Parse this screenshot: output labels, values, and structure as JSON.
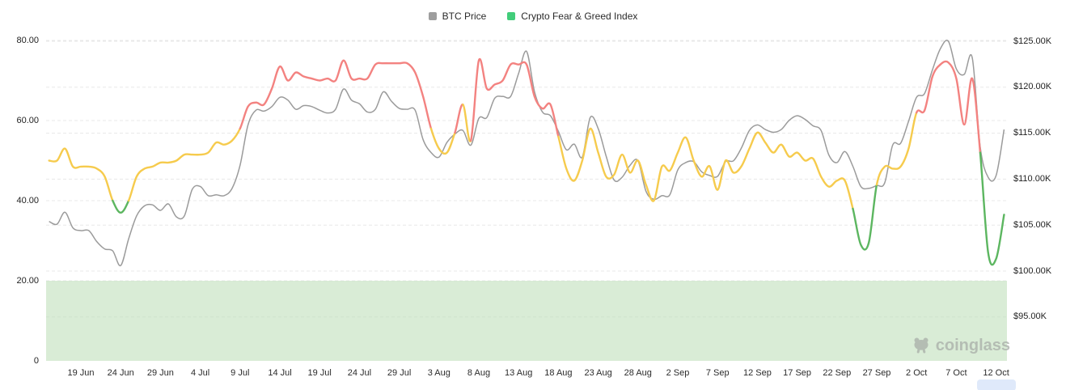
{
  "watermark": {
    "text": "coinglass"
  },
  "legend": [
    {
      "label": "BTC Price"
    },
    {
      "label": "Crypto Fear & Greed Index"
    }
  ],
  "chart_data": {
    "type": "line",
    "x_axis": {
      "tick_labels": [
        "19 Jun",
        "24 Jun",
        "29 Jun",
        "4 Jul",
        "9 Jul",
        "14 Jul",
        "19 Jul",
        "24 Jul",
        "29 Jul",
        "3 Aug",
        "8 Aug",
        "13 Aug",
        "18 Aug",
        "23 Aug",
        "28 Aug",
        "2 Sep",
        "7 Sep",
        "12 Sep",
        "17 Sep",
        "22 Sep",
        "27 Sep",
        "2 Oct",
        "7 Oct",
        "12 Oct"
      ],
      "interval": "daily",
      "series_start_label": "15 Jun",
      "series_end_label": "13 Oct",
      "highlighted_tick": "12 Oct"
    },
    "y_axis_left": {
      "name": "Crypto Fear & Greed Index",
      "tick_labels": [
        "80.00",
        "60.00",
        "40.00",
        "20.00",
        "0"
      ],
      "tick_values": [
        80,
        60,
        40,
        20,
        0
      ],
      "range": [
        0,
        80
      ]
    },
    "y_axis_right": {
      "name": "BTC Price",
      "tick_labels": [
        "$125.00K",
        "$120.00K",
        "$115.00K",
        "$110.00K",
        "$105.00K",
        "$100.00K",
        "$95.00K"
      ],
      "tick_values": [
        125,
        120,
        115,
        110,
        105,
        100,
        95
      ],
      "unit": "$K"
    },
    "fear_band": {
      "from": 0,
      "to": 20
    },
    "series": {
      "fear_greed": {
        "name": "Crypto Fear & Greed Index",
        "thresholds": {
          "fear_below": 40,
          "greed_from": 60
        },
        "values": [
          50,
          50,
          53,
          48.5,
          48.5,
          48.5,
          48,
          46,
          40,
          37,
          40,
          46,
          48,
          48.5,
          49.5,
          49.5,
          50,
          51.5,
          51.5,
          51.5,
          52,
          54.5,
          54,
          55,
          58,
          63.5,
          64.5,
          64,
          68,
          73.5,
          70,
          72,
          71,
          70.5,
          70,
          70.5,
          70,
          75,
          70.5,
          70.5,
          70.5,
          74,
          74.3,
          74.3,
          74.3,
          74.3,
          72,
          66,
          58,
          53,
          52,
          57,
          64,
          55,
          75,
          68,
          69,
          70,
          74,
          74,
          74,
          66,
          63,
          64,
          56,
          48,
          45,
          50,
          58,
          52,
          46,
          46.5,
          51.5,
          47,
          50,
          44,
          40,
          48.5,
          47.5,
          52,
          55.8,
          50,
          46,
          48.6,
          42.7,
          50,
          47,
          48.6,
          53,
          57,
          54.5,
          52,
          54,
          51,
          52,
          50,
          50.5,
          46,
          43.5,
          45,
          45,
          38,
          29,
          29.5,
          44,
          48.5,
          48,
          48.5,
          53,
          62,
          62.5,
          71,
          74,
          74.5,
          70.5,
          59,
          70.5,
          52,
          27,
          25.5,
          36.5
        ]
      },
      "btc_price": {
        "name": "BTC Price",
        "unit": "$K",
        "values": [
          105.4,
          105.1,
          106.4,
          104.7,
          104.4,
          104.4,
          103.2,
          102.4,
          102.2,
          100.6,
          103.5,
          106.0,
          107.1,
          107.2,
          106.6,
          107.3,
          105.9,
          106.0,
          108.9,
          109.2,
          108.2,
          108.3,
          108.2,
          109.0,
          111.5,
          115.9,
          117.5,
          117.4,
          117.9,
          118.9,
          118.6,
          117.6,
          118.0,
          117.9,
          117.5,
          117.2,
          117.6,
          119.8,
          118.6,
          118.2,
          117.3,
          117.6,
          119.5,
          118.5,
          117.7,
          117.6,
          117.5,
          114.3,
          112.9,
          112.4,
          114.0,
          114.9,
          115.3,
          113.7,
          116.6,
          116.7,
          118.8,
          119.0,
          119.0,
          121.5,
          123.9,
          119.5,
          117.3,
          116.9,
          115.2,
          113.2,
          113.8,
          112.4,
          116.7,
          115.5,
          112.5,
          109.9,
          110.2,
          111.5,
          112.0,
          108.7,
          107.8,
          108.2,
          108.3,
          111.0,
          111.8,
          111.9,
          110.8,
          110.4,
          110.3,
          111.9,
          112.0,
          113.4,
          115.3,
          115.9,
          115.4,
          115.1,
          115.4,
          116.4,
          116.9,
          116.5,
          115.8,
          115.3,
          112.6,
          111.8,
          113.0,
          111.4,
          109.2,
          109.0,
          109.3,
          109.6,
          113.7,
          113.9,
          116.3,
          118.9,
          119.3,
          121.9,
          124.2,
          125.0,
          122.0,
          121.4,
          123.2,
          113.5,
          110.2,
          110.4,
          115.4
        ]
      }
    },
    "colors": {
      "greed": "#F38280",
      "neutral": "#F6CB4D",
      "fear": "#5CB660",
      "btc": "#9B9B9B",
      "band": "#BFE0BB",
      "legend_btc": "#9E9E9E",
      "legend_fng": "#42CD7A",
      "grid": "#E8E8E8",
      "highlight": "#DFE9FA"
    }
  }
}
